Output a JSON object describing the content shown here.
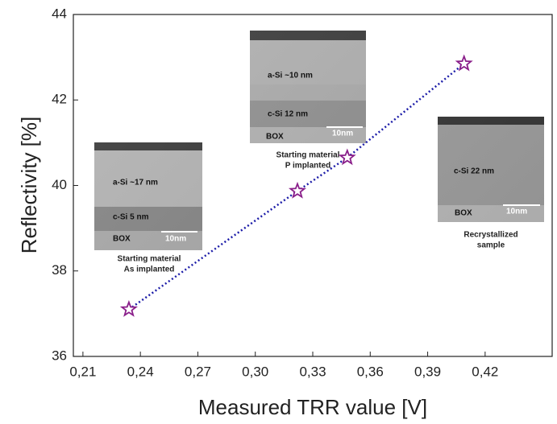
{
  "chart_data": {
    "type": "line",
    "x_label": "Measured TRR value [V]",
    "y_label": "Reflectivity [%]",
    "series": [
      {
        "color": "#1c1ca8",
        "marker_color": "#8a1f8a",
        "x": [
          0.234,
          0.322,
          0.348,
          0.409
        ],
        "values": [
          37.1,
          39.87,
          40.65,
          42.85
        ]
      }
    ],
    "xlim": [
      0.205,
      0.455
    ],
    "ylim": [
      36,
      44
    ],
    "xticks": [
      {
        "value": 0.21,
        "label": "0,21"
      },
      {
        "value": 0.24,
        "label": "0,24"
      },
      {
        "value": 0.27,
        "label": "0,27"
      },
      {
        "value": 0.3,
        "label": "0,30"
      },
      {
        "value": 0.33,
        "label": "0,33"
      },
      {
        "value": 0.36,
        "label": "0,36"
      },
      {
        "value": 0.39,
        "label": "0,39"
      },
      {
        "value": 0.42,
        "label": "0,42"
      }
    ],
    "yticks": [
      36,
      38,
      40,
      42,
      44
    ],
    "insets": [
      {
        "labels": [
          "a-Si ~17 nm",
          "c-Si 5 nm",
          "BOX",
          "10nm"
        ],
        "caption": [
          "Starting material",
          "As implanted"
        ]
      },
      {
        "labels": [
          "a-Si ~10 nm",
          "c-Si 12 nm",
          "BOX",
          "10nm"
        ],
        "caption": [
          "Starting material",
          "P implanted"
        ]
      },
      {
        "labels": [
          "c-Si 22 nm",
          "BOX",
          "10nm"
        ],
        "caption": [
          "Recrystallized",
          "sample"
        ]
      }
    ]
  }
}
